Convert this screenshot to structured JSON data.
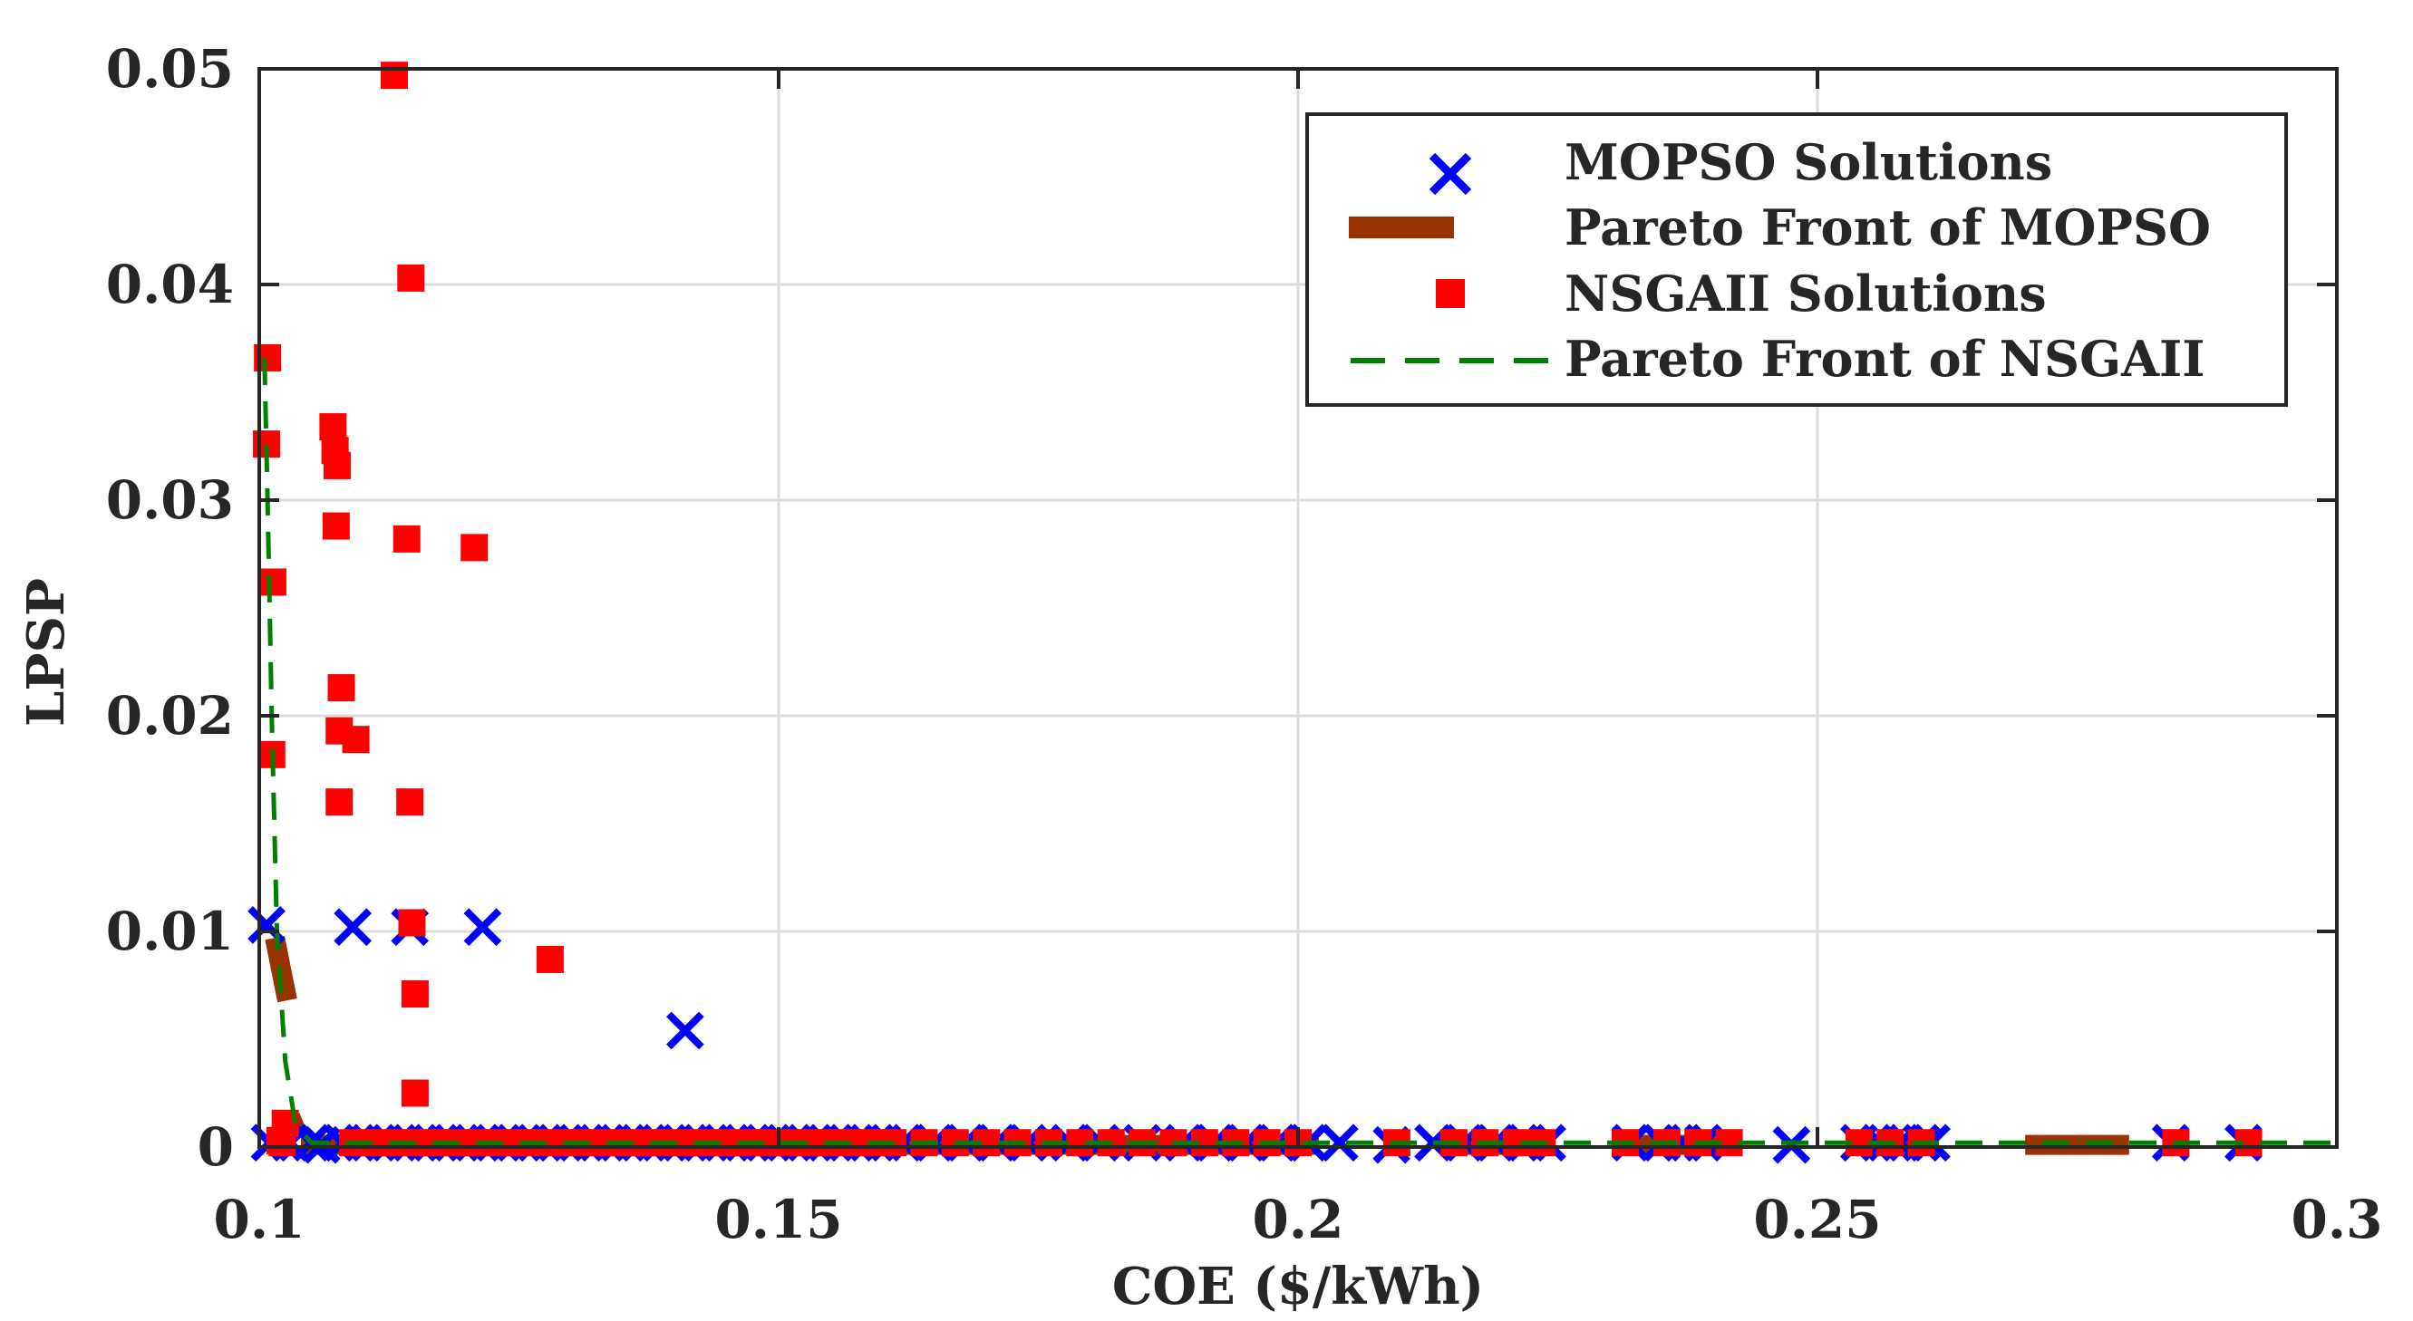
{
  "chart_data": {
    "type": "scatter",
    "title": "",
    "xlabel": "COE ($/kWh)",
    "ylabel": "LPSP",
    "xlim": [
      0.1,
      0.3
    ],
    "ylim": [
      0,
      0.05
    ],
    "grid": true,
    "x_ticks": [
      0.1,
      0.15,
      0.2,
      0.25,
      0.3
    ],
    "x_tick_labels": [
      "0.1",
      "0.15",
      "0.2",
      "0.25",
      "0.3"
    ],
    "y_ticks": [
      0,
      0.01,
      0.02,
      0.03,
      0.04,
      0.05
    ],
    "y_tick_labels": [
      "0",
      "0.01",
      "0.02",
      "0.03",
      "0.04",
      "0.05"
    ],
    "legend_position": "top-right",
    "series": [
      {
        "name": "MOPSO Solutions",
        "marker": "x",
        "color": "#0000ff",
        "points": [
          [
            0.1007,
            0.0103
          ],
          [
            0.109,
            0.0102
          ],
          [
            0.1145,
            0.0102
          ],
          [
            0.1215,
            0.0102
          ],
          [
            0.141,
            0.0054
          ],
          [
            0.2475,
            0.0001
          ],
          [
            0.101,
            0.0002
          ],
          [
            0.103,
            0.0002
          ],
          [
            0.105,
            0.0002
          ],
          [
            0.106,
            0.0001
          ],
          [
            0.108,
            0.0002
          ],
          [
            0.11,
            0.0002
          ],
          [
            0.112,
            0.0002
          ],
          [
            0.114,
            0.0002
          ],
          [
            0.116,
            0.0002
          ],
          [
            0.118,
            0.0002
          ],
          [
            0.12,
            0.0002
          ],
          [
            0.122,
            0.0002
          ],
          [
            0.124,
            0.0002
          ],
          [
            0.126,
            0.0002
          ],
          [
            0.128,
            0.0002
          ],
          [
            0.13,
            0.0002
          ],
          [
            0.132,
            0.0002
          ],
          [
            0.134,
            0.0002
          ],
          [
            0.136,
            0.0002
          ],
          [
            0.138,
            0.0002
          ],
          [
            0.14,
            0.0002
          ],
          [
            0.142,
            0.0002
          ],
          [
            0.144,
            0.0002
          ],
          [
            0.146,
            0.0002
          ],
          [
            0.148,
            0.0002
          ],
          [
            0.15,
            0.0002
          ],
          [
            0.152,
            0.0002
          ],
          [
            0.154,
            0.0002
          ],
          [
            0.156,
            0.0002
          ],
          [
            0.158,
            0.0002
          ],
          [
            0.16,
            0.0002
          ],
          [
            0.162,
            0.0002
          ],
          [
            0.165,
            0.0002
          ],
          [
            0.168,
            0.0002
          ],
          [
            0.171,
            0.0002
          ],
          [
            0.174,
            0.0002
          ],
          [
            0.178,
            0.0002
          ],
          [
            0.181,
            0.0002
          ],
          [
            0.185,
            0.0002
          ],
          [
            0.189,
            0.0002
          ],
          [
            0.192,
            0.0002
          ],
          [
            0.195,
            0.0002
          ],
          [
            0.198,
            0.0002
          ],
          [
            0.201,
            0.0002
          ],
          [
            0.204,
            0.0002
          ],
          [
            0.209,
            0.0001
          ],
          [
            0.213,
            0.0002
          ],
          [
            0.216,
            0.0002
          ],
          [
            0.219,
            0.0002
          ],
          [
            0.222,
            0.0002
          ],
          [
            0.224,
            0.0002
          ],
          [
            0.232,
            0.0002
          ],
          [
            0.235,
            0.0002
          ],
          [
            0.237,
            0.0002
          ],
          [
            0.239,
            0.0002
          ],
          [
            0.254,
            0.0002
          ],
          [
            0.256,
            0.0002
          ],
          [
            0.258,
            0.0002
          ],
          [
            0.26,
            0.0002
          ],
          [
            0.261,
            0.0002
          ],
          [
            0.284,
            0.0002
          ],
          [
            0.291,
            0.0002
          ]
        ]
      },
      {
        "name": "Pareto Front of MOPSO",
        "marker": "thick-line",
        "color": "#993300",
        "segments": [
          [
            [
              0.1015,
              0.0097
            ],
            [
              0.1027,
              0.0068
            ]
          ],
          [
            [
              0.103,
              0.0014
            ],
            [
              0.1035,
              0.0008
            ]
          ],
          [
            [
              0.104,
              0.0001
            ],
            [
              0.196,
              0.0001
            ]
          ],
          [
            [
              0.197,
              0.0001
            ],
            [
              0.202,
              0.0001
            ]
          ],
          [
            [
              0.215,
              0.0001
            ],
            [
              0.224,
              0.0001
            ]
          ],
          [
            [
              0.232,
              0.0001
            ],
            [
              0.241,
              0.0001
            ]
          ],
          [
            [
              0.253,
              0.0001
            ],
            [
              0.261,
              0.0001
            ]
          ],
          [
            [
              0.27,
              0.0001
            ],
            [
              0.28,
              0.0001
            ]
          ]
        ]
      },
      {
        "name": "NSGAII Solutions",
        "marker": "square",
        "color": "#ff0000",
        "points": [
          [
            0.113,
            0.0497
          ],
          [
            0.1146,
            0.0403
          ],
          [
            0.1008,
            0.0366
          ],
          [
            0.1007,
            0.0326
          ],
          [
            0.1071,
            0.0334
          ],
          [
            0.1073,
            0.0323
          ],
          [
            0.1075,
            0.0316
          ],
          [
            0.1074,
            0.0288
          ],
          [
            0.1142,
            0.0282
          ],
          [
            0.1207,
            0.0278
          ],
          [
            0.1013,
            0.0262
          ],
          [
            0.1079,
            0.0213
          ],
          [
            0.1077,
            0.0193
          ],
          [
            0.1093,
            0.0189
          ],
          [
            0.1012,
            0.0182
          ],
          [
            0.1077,
            0.016
          ],
          [
            0.1145,
            0.016
          ],
          [
            0.1147,
            0.0104
          ],
          [
            0.128,
            0.0087
          ],
          [
            0.115,
            0.0071
          ],
          [
            0.115,
            0.0025
          ],
          [
            0.1025,
            0.0011
          ],
          [
            0.1022,
            0.0002
          ],
          [
            0.102,
            0.0003
          ],
          [
            0.109,
            0.0002
          ],
          [
            0.111,
            0.0002
          ],
          [
            0.113,
            0.0002
          ],
          [
            0.115,
            0.0002
          ],
          [
            0.117,
            0.0002
          ],
          [
            0.119,
            0.0002
          ],
          [
            0.121,
            0.0002
          ],
          [
            0.123,
            0.0002
          ],
          [
            0.125,
            0.0002
          ],
          [
            0.127,
            0.0002
          ],
          [
            0.129,
            0.0002
          ],
          [
            0.131,
            0.0002
          ],
          [
            0.133,
            0.0002
          ],
          [
            0.135,
            0.0002
          ],
          [
            0.137,
            0.0002
          ],
          [
            0.139,
            0.0002
          ],
          [
            0.141,
            0.0002
          ],
          [
            0.143,
            0.0002
          ],
          [
            0.145,
            0.0002
          ],
          [
            0.147,
            0.0002
          ],
          [
            0.149,
            0.0002
          ],
          [
            0.151,
            0.0002
          ],
          [
            0.153,
            0.0002
          ],
          [
            0.155,
            0.0002
          ],
          [
            0.157,
            0.0002
          ],
          [
            0.159,
            0.0002
          ],
          [
            0.161,
            0.0002
          ],
          [
            0.164,
            0.0002
          ],
          [
            0.167,
            0.0002
          ],
          [
            0.17,
            0.0002
          ],
          [
            0.173,
            0.0002
          ],
          [
            0.176,
            0.0002
          ],
          [
            0.179,
            0.0002
          ],
          [
            0.182,
            0.0002
          ],
          [
            0.185,
            0.0002
          ],
          [
            0.188,
            0.0002
          ],
          [
            0.191,
            0.0002
          ],
          [
            0.194,
            0.0002
          ],
          [
            0.197,
            0.0002
          ],
          [
            0.2,
            0.0002
          ],
          [
            0.2095,
            0.0002
          ],
          [
            0.215,
            0.0002
          ],
          [
            0.218,
            0.0002
          ],
          [
            0.221,
            0.0002
          ],
          [
            0.2235,
            0.0002
          ],
          [
            0.2315,
            0.0002
          ],
          [
            0.2355,
            0.0002
          ],
          [
            0.2385,
            0.0002
          ],
          [
            0.2415,
            0.0002
          ],
          [
            0.254,
            0.0002
          ],
          [
            0.257,
            0.0002
          ],
          [
            0.26,
            0.0002
          ],
          [
            0.2845,
            0.0002
          ],
          [
            0.2915,
            0.0002
          ]
        ]
      },
      {
        "name": "Pareto Front of NSGAII",
        "marker": "dashed-line",
        "color": "#008000",
        "points": [
          [
            0.1005,
            0.0366
          ],
          [
            0.1008,
            0.03
          ],
          [
            0.1012,
            0.02
          ],
          [
            0.1017,
            0.01
          ],
          [
            0.1025,
            0.004
          ],
          [
            0.1035,
            0.001
          ],
          [
            0.105,
            0.0002
          ],
          [
            0.3,
            0.0002
          ]
        ]
      }
    ]
  }
}
